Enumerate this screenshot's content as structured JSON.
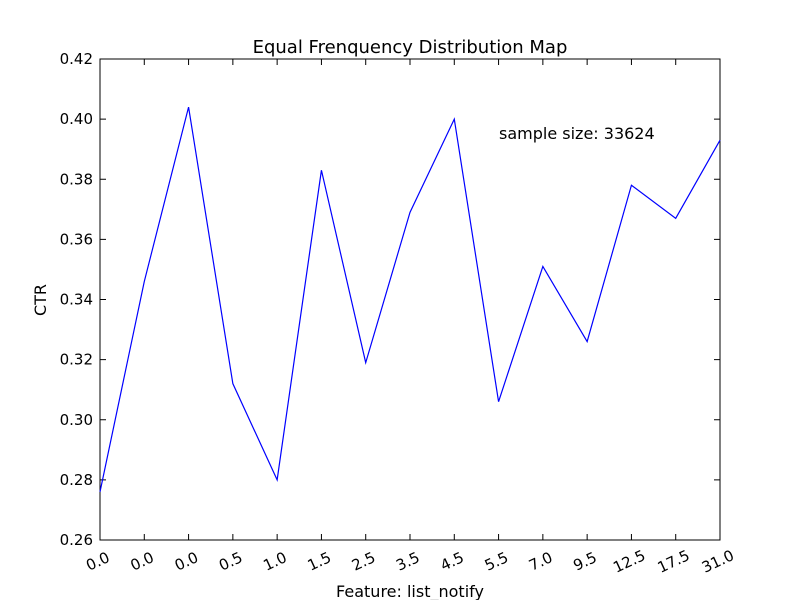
{
  "chart_data": {
    "type": "line",
    "title": "Equal Frenquency Distribution Map",
    "xlabel": "Feature: list_notify",
    "ylabel": "CTR",
    "categories": [
      "0.0",
      "0.0",
      "0.0",
      "0.5",
      "1.0",
      "1.5",
      "2.5",
      "3.5",
      "4.5",
      "5.5",
      "7.0",
      "9.5",
      "12.5",
      "17.5",
      "31.0"
    ],
    "values": [
      0.276,
      0.346,
      0.404,
      0.312,
      0.28,
      0.383,
      0.319,
      0.369,
      0.4,
      0.306,
      0.351,
      0.326,
      0.378,
      0.367,
      0.393
    ],
    "ylim": [
      0.26,
      0.42
    ],
    "yticks": [
      "0.26",
      "0.28",
      "0.30",
      "0.32",
      "0.34",
      "0.36",
      "0.38",
      "0.40",
      "0.42"
    ],
    "annotation": "sample size: 33624",
    "line_color": "#0000ff",
    "grid": false
  }
}
